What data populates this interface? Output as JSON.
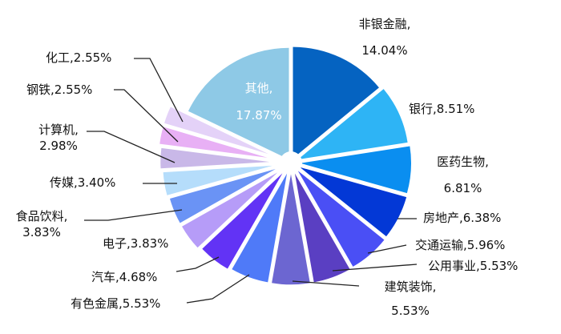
{
  "chart_data": {
    "type": "pie",
    "title": "",
    "start_angle_deg": 0,
    "direction": "clockwise",
    "center": [
      363,
      203
    ],
    "radius": 140,
    "slices": [
      {
        "label": "非银金融",
        "value": 14.04,
        "color": "#0563c1"
      },
      {
        "label": "银行",
        "value": 8.51,
        "color": "#2eb4f5"
      },
      {
        "label": "医药生物",
        "value": 6.81,
        "color": "#0a8ef0"
      },
      {
        "label": "房地产",
        "value": 6.38,
        "color": "#0338d6"
      },
      {
        "label": "交通运输",
        "value": 5.96,
        "color": "#4a4ff5"
      },
      {
        "label": "公用事业",
        "value": 5.53,
        "color": "#5a3fc2"
      },
      {
        "label": "建筑装饰",
        "value": 5.53,
        "color": "#6c66d1"
      },
      {
        "label": "有色金属",
        "value": 5.53,
        "color": "#4f7af8"
      },
      {
        "label": "汽车",
        "value": 4.68,
        "color": "#6233f5"
      },
      {
        "label": "电子",
        "value": 3.83,
        "color": "#b69cf8"
      },
      {
        "label": "食品饮料",
        "value": 3.83,
        "color": "#6a93f5"
      },
      {
        "label": "传媒",
        "value": 3.4,
        "color": "#b5ddfb"
      },
      {
        "label": "计算机",
        "value": 2.98,
        "color": "#c9b8e8"
      },
      {
        "label": "钢铁",
        "value": 2.55,
        "color": "#e8b0f5"
      },
      {
        "label": "化工",
        "value": 2.55,
        "color": "#e4d2f8"
      },
      {
        "label": "其他",
        "value": 17.87,
        "color": "#8ec9e6"
      }
    ]
  },
  "labels": {
    "feiyin_1": "非银金融,",
    "feiyin_2": "14.04%",
    "yinhang": "银行,8.51%",
    "yiyao_1": "医药生物,",
    "yiyao_2": "6.81%",
    "fangdichan": "房地产,6.38%",
    "jiaotong": "交通运输,5.96%",
    "gongyong": "公用事业,5.53%",
    "jianzhu_1": "建筑装饰,",
    "jianzhu_2": "5.53%",
    "youse": "有色金属,5.53%",
    "qiche": "汽车,4.68%",
    "dianzi": "电子,3.83%",
    "shipin_1": "食品饮料,",
    "shipin_2": "3.83%",
    "chuanmei": "传媒,3.40%",
    "jisuanji_1": "计算机,",
    "jisuanji_2": "2.98%",
    "gangtie": "钢铁,2.55%",
    "huagong": "化工,2.55%",
    "qita_1": "其他,",
    "qita_2": "17.87%"
  }
}
